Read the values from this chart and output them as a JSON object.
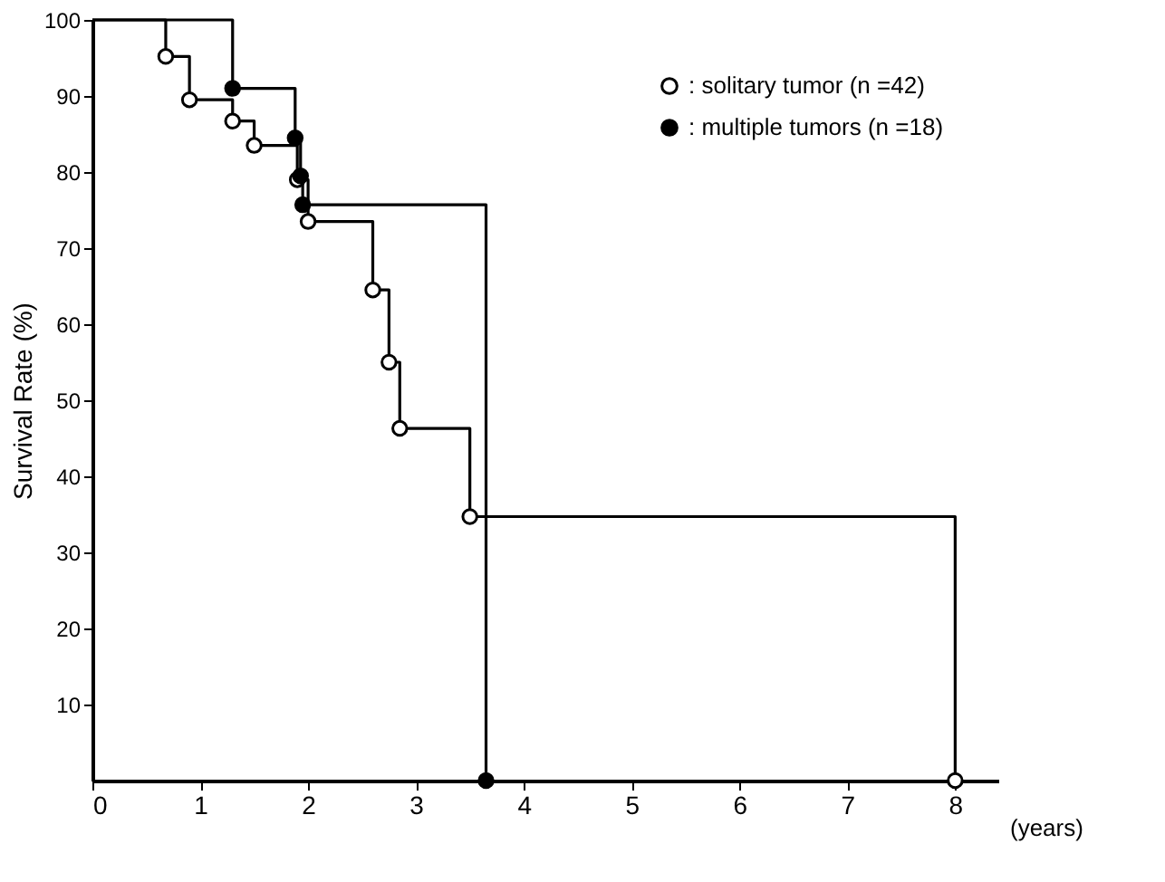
{
  "chart_data": {
    "type": "step",
    "xlabel": "(years)",
    "ylabel": "Survival Rate (%)",
    "xlim": [
      0,
      8.4
    ],
    "xticks": [
      0,
      1,
      2,
      3,
      4,
      5,
      6,
      7,
      8
    ],
    "ylim": [
      0,
      100
    ],
    "yticks": [
      10,
      20,
      30,
      40,
      50,
      60,
      70,
      80,
      90,
      100
    ],
    "grid": false,
    "legend": "top right",
    "marker": "circle",
    "line_style": "solid",
    "series": [
      {
        "name": ": solitary tumor  (n =42)",
        "color": "#ffffff",
        "x": [
          0,
          0.68,
          0.9,
          1.3,
          1.5,
          1.9,
          2.0,
          2.6,
          2.75,
          2.85,
          3.5,
          8.0
        ],
        "values": [
          100,
          95.2,
          89.5,
          86.7,
          83.5,
          79,
          73.5,
          64.5,
          55,
          46.3,
          34.7,
          0
        ]
      },
      {
        "name": ": multiple tumors (n =18)",
        "color": "#000000",
        "x": [
          0,
          1.3,
          1.88,
          1.93,
          1.95,
          3.65
        ],
        "values": [
          100,
          91,
          84.5,
          79.5,
          75.7,
          0
        ]
      }
    ]
  }
}
